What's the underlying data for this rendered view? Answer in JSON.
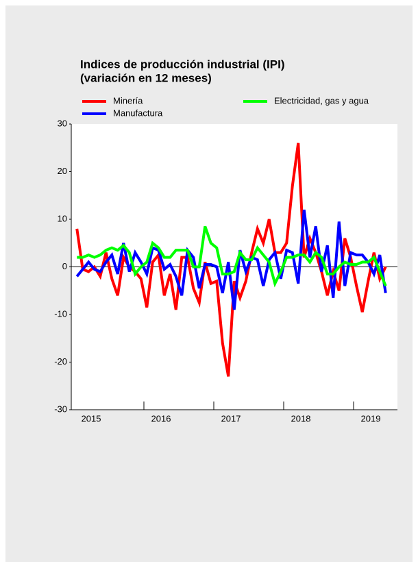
{
  "chart_data": {
    "type": "line",
    "title": "Indices de producción industrial (IPI)",
    "subtitle": "(variación en 12 meses)",
    "categories": [
      "2015",
      null,
      null,
      null,
      null,
      null,
      null,
      null,
      null,
      null,
      null,
      null,
      "2016",
      null,
      null,
      null,
      null,
      null,
      null,
      null,
      null,
      null,
      null,
      null,
      "2017",
      null,
      null,
      null,
      null,
      null,
      null,
      null,
      null,
      null,
      null,
      null,
      "2018",
      null,
      null,
      null,
      null,
      null,
      null,
      null,
      null,
      null,
      null,
      null,
      "2019",
      null,
      null,
      null,
      null,
      null
    ],
    "series": [
      {
        "name": "Minería",
        "color": "#ff0000",
        "values": [
          8,
          -0.5,
          -1,
          0,
          -2,
          3,
          -2.5,
          -6,
          2,
          0,
          -1,
          -2.5,
          -8.5,
          1,
          2.5,
          -6,
          -1.5,
          -9,
          2,
          2,
          -4.5,
          -7.5,
          1,
          -3.5,
          -3,
          -16,
          -23,
          -3,
          -6.5,
          -3,
          3,
          8,
          5,
          10,
          3,
          3,
          5,
          17,
          26,
          2,
          6,
          3,
          -1,
          -6,
          -1,
          -5,
          6,
          2,
          -4,
          -9.5,
          -3,
          3,
          -2.5,
          0
        ]
      },
      {
        "name": "Manufactura",
        "color": "#0000ff",
        "values": [
          -2,
          -0.5,
          1,
          -0.5,
          -1,
          1,
          2.5,
          -1.5,
          5,
          -1,
          3,
          1,
          -1.5,
          4,
          3.5,
          -0.5,
          0.5,
          -2,
          -6,
          3.5,
          2,
          -4.5,
          0.5,
          0.5,
          0,
          -5.5,
          1,
          -9,
          3.5,
          -1,
          2,
          1.5,
          -4,
          1.5,
          3,
          -2.5,
          3.5,
          3,
          -3.5,
          12,
          2,
          8.5,
          -1,
          4.5,
          -6.5,
          9.5,
          -4,
          3,
          2.5,
          2.5,
          1,
          -1.5,
          2.5,
          -5.5
        ]
      },
      {
        "name": "Electricidad, gas y agua",
        "color": "#00ff00",
        "values": [
          2,
          2,
          2.5,
          2,
          2.5,
          3.5,
          4,
          3.5,
          4.5,
          3,
          -1.5,
          0,
          1,
          5,
          4,
          2,
          2,
          3.5,
          3.5,
          3.5,
          0,
          0,
          8.5,
          5,
          4,
          -1.5,
          -1.5,
          -1,
          3,
          1.5,
          1.5,
          4,
          2.5,
          1,
          -3.5,
          -1,
          2,
          2,
          2.5,
          2.5,
          1,
          3,
          2,
          -1.5,
          -1.5,
          0,
          1,
          0.5,
          0.5,
          1,
          1,
          2,
          -1,
          -4
        ]
      }
    ],
    "ylim": [
      -30,
      30
    ],
    "yticks": [
      -30,
      -20,
      -10,
      0,
      10,
      20,
      30
    ]
  }
}
